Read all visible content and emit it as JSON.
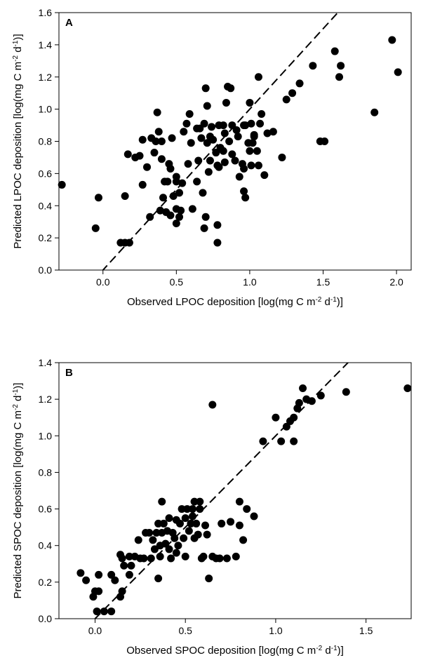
{
  "chart_data": [
    {
      "type": "scatter",
      "panel_label": "A",
      "xlabel": "Observed LPOC deposition [log(mg C m-2 d-1)]",
      "ylabel": "Predicted LPOC deposition [log(mg C m-2 d-1)]",
      "xlabel_parts": [
        "Observed LPOC deposition [log(mg C m",
        "-2",
        " d",
        "-1",
        ")]"
      ],
      "ylabel_parts": [
        "Predicted LPOC deposition [log(mg C m",
        "-2",
        " d",
        "-1",
        ")]"
      ],
      "xlim": [
        -0.3,
        2.1
      ],
      "ylim": [
        0,
        1.6
      ],
      "xticks": [
        0.0,
        0.5,
        1.0,
        1.5,
        2.0
      ],
      "xtick_labels": [
        "0.0",
        "0.5",
        "1.0",
        "1.5",
        "2.0"
      ],
      "yticks": [
        0.0,
        0.2,
        0.4,
        0.6,
        0.8,
        1.0,
        1.2,
        1.4,
        1.6
      ],
      "ytick_labels": [
        "0.0",
        "0.2",
        "0.4",
        "0.6",
        "0.8",
        "1.0",
        "1.2",
        "1.4",
        "1.6"
      ],
      "grid": false,
      "reference_line": {
        "style": "dashed",
        "slope": 1,
        "intercept": 0
      },
      "points": [
        [
          -0.28,
          0.53
        ],
        [
          -0.05,
          0.26
        ],
        [
          -0.03,
          0.45
        ],
        [
          0.12,
          0.17
        ],
        [
          0.15,
          0.17
        ],
        [
          0.18,
          0.17
        ],
        [
          0.15,
          0.46
        ],
        [
          0.17,
          0.72
        ],
        [
          0.22,
          0.7
        ],
        [
          0.25,
          0.71
        ],
        [
          0.27,
          0.81
        ],
        [
          0.27,
          0.53
        ],
        [
          0.3,
          0.64
        ],
        [
          0.33,
          0.82
        ],
        [
          0.32,
          0.33
        ],
        [
          0.35,
          0.73
        ],
        [
          0.36,
          0.8
        ],
        [
          0.37,
          0.98
        ],
        [
          0.38,
          0.86
        ],
        [
          0.4,
          0.8
        ],
        [
          0.4,
          0.69
        ],
        [
          0.41,
          0.45
        ],
        [
          0.39,
          0.37
        ],
        [
          0.42,
          0.55
        ],
        [
          0.43,
          0.36
        ],
        [
          0.44,
          0.55
        ],
        [
          0.45,
          0.66
        ],
        [
          0.46,
          0.63
        ],
        [
          0.46,
          0.34
        ],
        [
          0.47,
          0.82
        ],
        [
          0.48,
          0.46
        ],
        [
          0.5,
          0.58
        ],
        [
          0.5,
          0.55
        ],
        [
          0.5,
          0.29
        ],
        [
          0.5,
          0.38
        ],
        [
          0.52,
          0.48
        ],
        [
          0.52,
          0.33
        ],
        [
          0.53,
          0.37
        ],
        [
          0.54,
          0.54
        ],
        [
          0.55,
          0.86
        ],
        [
          0.57,
          0.91
        ],
        [
          0.58,
          0.66
        ],
        [
          0.59,
          0.97
        ],
        [
          0.6,
          0.79
        ],
        [
          0.61,
          0.38
        ],
        [
          0.64,
          0.55
        ],
        [
          0.65,
          0.68
        ],
        [
          0.66,
          0.88
        ],
        [
          0.67,
          0.82
        ],
        [
          0.68,
          0.48
        ],
        [
          0.69,
          0.91
        ],
        [
          0.7,
          0.33
        ],
        [
          0.71,
          1.02
        ],
        [
          0.71,
          0.79
        ],
        [
          0.72,
          0.61
        ],
        [
          0.73,
          0.68
        ],
        [
          0.74,
          0.89
        ],
        [
          0.75,
          0.81
        ],
        [
          0.77,
          0.73
        ],
        [
          0.78,
          0.65
        ],
        [
          0.79,
          0.64
        ],
        [
          0.8,
          0.76
        ],
        [
          0.82,
          0.9
        ],
        [
          0.83,
          0.85
        ],
        [
          0.84,
          1.04
        ],
        [
          0.83,
          0.67
        ],
        [
          0.85,
          1.14
        ],
        [
          0.86,
          0.8
        ],
        [
          0.88,
          0.72
        ],
        [
          0.88,
          0.9
        ],
        [
          0.9,
          0.68
        ],
        [
          0.91,
          0.87
        ],
        [
          0.92,
          0.83
        ],
        [
          0.93,
          0.58
        ],
        [
          0.95,
          0.66
        ],
        [
          0.96,
          0.63
        ],
        [
          0.96,
          0.9
        ],
        [
          0.97,
          0.45
        ],
        [
          0.99,
          0.79
        ],
        [
          1.0,
          0.74
        ],
        [
          1.0,
          1.04
        ],
        [
          1.01,
          0.65
        ],
        [
          1.01,
          0.91
        ],
        [
          1.02,
          0.79
        ],
        [
          1.03,
          0.84
        ],
        [
          1.05,
          0.74
        ],
        [
          1.06,
          0.65
        ],
        [
          1.06,
          1.2
        ],
        [
          1.07,
          0.91
        ],
        [
          1.1,
          0.59
        ],
        [
          0.79,
          0.9
        ],
        [
          0.82,
          0.74
        ],
        [
          0.96,
          0.49
        ],
        [
          1.08,
          0.97
        ],
        [
          1.16,
          0.86
        ],
        [
          1.22,
          0.7
        ],
        [
          0.69,
          0.26
        ],
        [
          0.78,
          0.17
        ],
        [
          0.78,
          0.28
        ],
        [
          0.97,
          0.9
        ],
        [
          1.03,
          0.83
        ],
        [
          1.12,
          0.85
        ],
        [
          1.25,
          1.06
        ],
        [
          1.29,
          1.1
        ],
        [
          1.34,
          1.16
        ],
        [
          1.43,
          1.27
        ],
        [
          1.48,
          0.8
        ],
        [
          1.51,
          0.8
        ],
        [
          1.58,
          1.36
        ],
        [
          1.61,
          1.2
        ],
        [
          1.62,
          1.27
        ],
        [
          1.85,
          0.98
        ],
        [
          1.97,
          1.43
        ],
        [
          2.01,
          1.23
        ],
        [
          0.7,
          1.13
        ],
        [
          0.87,
          1.13
        ],
        [
          0.73,
          0.83
        ],
        [
          0.64,
          0.88
        ]
      ]
    },
    {
      "type": "scatter",
      "panel_label": "B",
      "xlabel": "Observed SPOC deposition [log(mg C m-2 d-1)]",
      "ylabel": "Predicted SPOC deposition [log(mg C m-2 d-1)]",
      "xlabel_parts": [
        "Observed SPOC deposition [log(mg C m",
        "-2",
        " d",
        "-1",
        ")]"
      ],
      "ylabel_parts": [
        "Predicted SPOC deposition [log(mg C m",
        "-2",
        " d",
        "-1",
        ")]"
      ],
      "xlim": [
        -0.2,
        1.75
      ],
      "ylim": [
        0,
        1.4
      ],
      "xticks": [
        0.0,
        0.5,
        1.0,
        1.5
      ],
      "xtick_labels": [
        "0.0",
        "0.5",
        "1.0",
        "1.5"
      ],
      "yticks": [
        0.0,
        0.2,
        0.4,
        0.6,
        0.8,
        1.0,
        1.2,
        1.4
      ],
      "ytick_labels": [
        "0.0",
        "0.2",
        "0.4",
        "0.6",
        "0.8",
        "1.0",
        "1.2",
        "1.4"
      ],
      "grid": false,
      "reference_line": {
        "style": "dashed",
        "slope": 1,
        "intercept": 0
      },
      "points": [
        [
          -0.08,
          0.25
        ],
        [
          -0.05,
          0.21
        ],
        [
          -0.01,
          0.12
        ],
        [
          0.0,
          0.15
        ],
        [
          0.02,
          0.15
        ],
        [
          0.01,
          0.04
        ],
        [
          0.02,
          0.24
        ],
        [
          0.05,
          0.04
        ],
        [
          0.09,
          0.04
        ],
        [
          0.09,
          0.24
        ],
        [
          0.11,
          0.21
        ],
        [
          0.14,
          0.12
        ],
        [
          0.15,
          0.15
        ],
        [
          0.14,
          0.35
        ],
        [
          0.15,
          0.33
        ],
        [
          0.16,
          0.29
        ],
        [
          0.19,
          0.34
        ],
        [
          0.2,
          0.29
        ],
        [
          0.19,
          0.24
        ],
        [
          0.22,
          0.34
        ],
        [
          0.24,
          0.43
        ],
        [
          0.25,
          0.33
        ],
        [
          0.27,
          0.33
        ],
        [
          0.28,
          0.47
        ],
        [
          0.3,
          0.47
        ],
        [
          0.31,
          0.33
        ],
        [
          0.32,
          0.43
        ],
        [
          0.33,
          0.38
        ],
        [
          0.34,
          0.47
        ],
        [
          0.35,
          0.52
        ],
        [
          0.35,
          0.22
        ],
        [
          0.36,
          0.4
        ],
        [
          0.36,
          0.34
        ],
        [
          0.37,
          0.64
        ],
        [
          0.37,
          0.47
        ],
        [
          0.38,
          0.52
        ],
        [
          0.39,
          0.41
        ],
        [
          0.4,
          0.48
        ],
        [
          0.41,
          0.38
        ],
        [
          0.41,
          0.55
        ],
        [
          0.42,
          0.33
        ],
        [
          0.43,
          0.47
        ],
        [
          0.44,
          0.44
        ],
        [
          0.45,
          0.54
        ],
        [
          0.45,
          0.36
        ],
        [
          0.46,
          0.4
        ],
        [
          0.47,
          0.52
        ],
        [
          0.48,
          0.6
        ],
        [
          0.49,
          0.44
        ],
        [
          0.5,
          0.55
        ],
        [
          0.5,
          0.34
        ],
        [
          0.51,
          0.6
        ],
        [
          0.52,
          0.48
        ],
        [
          0.53,
          0.52
        ],
        [
          0.54,
          0.6
        ],
        [
          0.54,
          0.56
        ],
        [
          0.55,
          0.64
        ],
        [
          0.55,
          0.44
        ],
        [
          0.56,
          0.52
        ],
        [
          0.57,
          0.46
        ],
        [
          0.58,
          0.6
        ],
        [
          0.58,
          0.64
        ],
        [
          0.59,
          0.33
        ],
        [
          0.6,
          0.34
        ],
        [
          0.61,
          0.51
        ],
        [
          0.62,
          0.46
        ],
        [
          0.63,
          0.22
        ],
        [
          0.65,
          1.17
        ],
        [
          0.65,
          0.34
        ],
        [
          0.67,
          0.33
        ],
        [
          0.69,
          0.33
        ],
        [
          0.7,
          0.52
        ],
        [
          0.73,
          0.33
        ],
        [
          0.75,
          0.53
        ],
        [
          0.78,
          0.34
        ],
        [
          0.8,
          0.51
        ],
        [
          0.8,
          0.64
        ],
        [
          0.82,
          0.43
        ],
        [
          0.84,
          0.6
        ],
        [
          0.88,
          0.56
        ],
        [
          0.93,
          0.97
        ],
        [
          1.0,
          1.1
        ],
        [
          1.03,
          0.97
        ],
        [
          1.06,
          1.05
        ],
        [
          1.08,
          1.08
        ],
        [
          1.1,
          1.1
        ],
        [
          1.1,
          0.97
        ],
        [
          1.12,
          1.15
        ],
        [
          1.13,
          1.18
        ],
        [
          1.15,
          1.26
        ],
        [
          1.17,
          1.2
        ],
        [
          1.2,
          1.19
        ],
        [
          1.25,
          1.22
        ],
        [
          1.39,
          1.24
        ],
        [
          1.73,
          1.26
        ]
      ]
    }
  ]
}
